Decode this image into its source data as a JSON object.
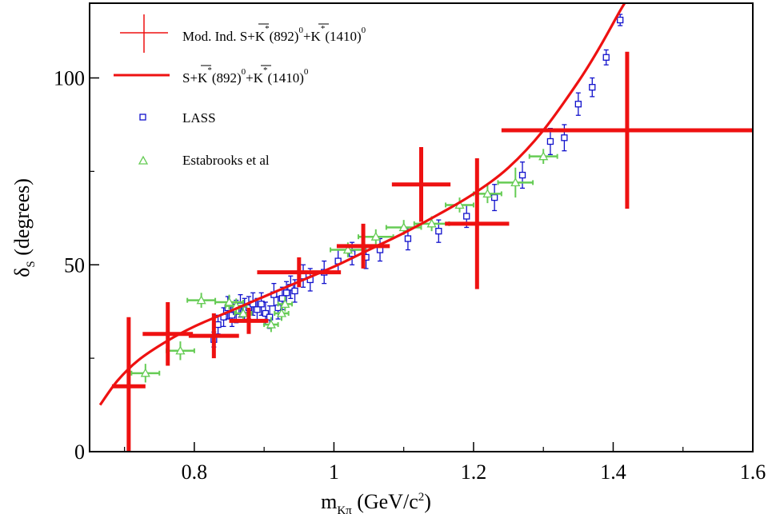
{
  "chart_data": {
    "type": "scatter",
    "x_axis": {
      "min": 0.65,
      "max": 1.6,
      "ticks": [
        0.8,
        1,
        1.2,
        1.4,
        1.6
      ],
      "tick_labels": [
        "0.8",
        "1",
        "1.2",
        "1.4",
        "1.6"
      ]
    },
    "y_axis": {
      "min": 0,
      "max": 120,
      "ticks": [
        0,
        50,
        100
      ],
      "tick_labels": [
        "0",
        "50",
        "100"
      ]
    },
    "xlabel": {
      "main": "m",
      "sub": "Kπ",
      "unit_pre": " (GeV/c",
      "unit_sup": "2",
      "unit_post": ")"
    },
    "ylabel": {
      "main": "δ",
      "sub": "S",
      "unit": " (degrees)"
    },
    "legend_position": "top-left",
    "series": [
      {
        "name": "Mod. Ind. S+K̄*(892)⁰+K̄*(1410)⁰",
        "legend": {
          "prefix": "Mod. Ind. S+",
          "k": "K",
          "star1": "*",
          "mass1": "(892)",
          "zero1": "0",
          "plus": "+",
          "star2": "*",
          "mass2": "(1410)",
          "zero2": "0"
        },
        "style": "crosses",
        "color": "#ee1111",
        "points": [
          {
            "x": 0.706,
            "y": 17.5,
            "xerr": 0.024,
            "yerr_lo": 18.5,
            "yerr_hi": 18.5
          },
          {
            "x": 0.762,
            "y": 31.5,
            "xerr": 0.036,
            "yerr_lo": 8.5,
            "yerr_hi": 8.5
          },
          {
            "x": 0.828,
            "y": 31.0,
            "xerr": 0.036,
            "yerr_lo": 6.0,
            "yerr_hi": 6.0
          },
          {
            "x": 0.878,
            "y": 35.0,
            "xerr": 0.028,
            "yerr_lo": 3.5,
            "yerr_hi": 3.5
          },
          {
            "x": 0.95,
            "y": 48.0,
            "xerr": 0.06,
            "yerr_lo": 4.0,
            "yerr_hi": 4.0
          },
          {
            "x": 1.042,
            "y": 55.0,
            "xerr": 0.038,
            "yerr_lo": 6.0,
            "yerr_hi": 6.0
          },
          {
            "x": 1.125,
            "y": 71.5,
            "xerr": 0.042,
            "yerr_lo": 10.0,
            "yerr_hi": 10.0
          },
          {
            "x": 1.205,
            "y": 61.0,
            "xerr": 0.046,
            "yerr_lo": 17.5,
            "yerr_hi": 17.5
          },
          {
            "x": 1.42,
            "y": 86.0,
            "xerr": 0.18,
            "yerr_lo": 21.0,
            "yerr_hi": 21.0
          }
        ]
      },
      {
        "name": "S+K̄*(892)⁰+K̄*(1410)⁰",
        "legend": {
          "prefix": "S+",
          "k": "K",
          "star1": "*",
          "mass1": "(892)",
          "zero1": "0",
          "plus": "+",
          "star2": "*",
          "mass2": "(1410)",
          "zero2": "0"
        },
        "style": "line",
        "color": "#ee1111",
        "points": [
          {
            "x": 0.665,
            "y": 12.5
          },
          {
            "x": 0.69,
            "y": 19.0
          },
          {
            "x": 0.72,
            "y": 24.5
          },
          {
            "x": 0.76,
            "y": 29.5
          },
          {
            "x": 0.8,
            "y": 33.5
          },
          {
            "x": 0.85,
            "y": 37.5
          },
          {
            "x": 0.9,
            "y": 41.5
          },
          {
            "x": 0.95,
            "y": 45.5
          },
          {
            "x": 1.0,
            "y": 49.5
          },
          {
            "x": 1.05,
            "y": 54.0
          },
          {
            "x": 1.1,
            "y": 58.5
          },
          {
            "x": 1.15,
            "y": 63.5
          },
          {
            "x": 1.2,
            "y": 69.0
          },
          {
            "x": 1.25,
            "y": 76.0
          },
          {
            "x": 1.3,
            "y": 86.0
          },
          {
            "x": 1.35,
            "y": 99.0
          },
          {
            "x": 1.38,
            "y": 108.0
          },
          {
            "x": 1.41,
            "y": 118.0
          },
          {
            "x": 1.42,
            "y": 121.0
          }
        ]
      },
      {
        "name": "LASS",
        "style": "square",
        "color": "#1111cc",
        "points": [
          {
            "x": 0.828,
            "y": 30.0,
            "yerr": 2.0
          },
          {
            "x": 0.834,
            "y": 34.0,
            "yerr": 2.5
          },
          {
            "x": 0.842,
            "y": 36.0,
            "yerr": 2.5
          },
          {
            "x": 0.848,
            "y": 38.5,
            "yerr": 3.0
          },
          {
            "x": 0.854,
            "y": 36.5,
            "yerr": 3.0
          },
          {
            "x": 0.86,
            "y": 37.5,
            "yerr": 3.0
          },
          {
            "x": 0.866,
            "y": 39.0,
            "yerr": 3.0
          },
          {
            "x": 0.872,
            "y": 38.0,
            "yerr": 3.0
          },
          {
            "x": 0.878,
            "y": 38.5,
            "yerr": 3.0
          },
          {
            "x": 0.884,
            "y": 39.5,
            "yerr": 3.0
          },
          {
            "x": 0.89,
            "y": 38.0,
            "yerr": 3.0
          },
          {
            "x": 0.896,
            "y": 39.5,
            "yerr": 3.0
          },
          {
            "x": 0.902,
            "y": 37.0,
            "yerr": 3.0
          },
          {
            "x": 0.908,
            "y": 36.0,
            "yerr": 3.0
          },
          {
            "x": 0.914,
            "y": 42.0,
            "yerr": 3.0
          },
          {
            "x": 0.92,
            "y": 38.5,
            "yerr": 3.0
          },
          {
            "x": 0.926,
            "y": 41.0,
            "yerr": 3.0
          },
          {
            "x": 0.932,
            "y": 42.5,
            "yerr": 3.0
          },
          {
            "x": 0.938,
            "y": 44.0,
            "yerr": 3.0
          },
          {
            "x": 0.944,
            "y": 43.0,
            "yerr": 3.0
          },
          {
            "x": 0.956,
            "y": 47.0,
            "yerr": 3.0
          },
          {
            "x": 0.966,
            "y": 46.0,
            "yerr": 3.0
          },
          {
            "x": 0.986,
            "y": 48.0,
            "yerr": 3.0
          },
          {
            "x": 1.006,
            "y": 51.0,
            "yerr": 3.0
          },
          {
            "x": 1.026,
            "y": 53.0,
            "yerr": 3.0
          },
          {
            "x": 1.046,
            "y": 52.0,
            "yerr": 3.0
          },
          {
            "x": 1.066,
            "y": 54.0,
            "yerr": 3.0
          },
          {
            "x": 1.106,
            "y": 57.0,
            "yerr": 3.0
          },
          {
            "x": 1.15,
            "y": 59.0,
            "yerr": 3.0
          },
          {
            "x": 1.19,
            "y": 63.0,
            "yerr": 3.0
          },
          {
            "x": 1.23,
            "y": 68.0,
            "yerr": 3.5
          },
          {
            "x": 1.27,
            "y": 74.0,
            "yerr": 3.5
          },
          {
            "x": 1.31,
            "y": 83.0,
            "yerr": 3.5
          },
          {
            "x": 1.33,
            "y": 84.0,
            "yerr": 3.5
          },
          {
            "x": 1.35,
            "y": 93.0,
            "yerr": 3.0
          },
          {
            "x": 1.37,
            "y": 97.5,
            "yerr": 2.5
          },
          {
            "x": 1.39,
            "y": 105.5,
            "yerr": 2.0
          },
          {
            "x": 1.41,
            "y": 115.5,
            "yerr": 1.5
          }
        ]
      },
      {
        "name": "Estabrooks et al",
        "style": "triangle",
        "color": "#66cc55",
        "points": [
          {
            "x": 0.73,
            "y": 21.0,
            "xerr": 0.02,
            "yerr": 2.5
          },
          {
            "x": 0.78,
            "y": 27.0,
            "xerr": 0.02,
            "yerr": 2.5
          },
          {
            "x": 0.81,
            "y": 40.5,
            "xerr": 0.02,
            "yerr": 2.0
          },
          {
            "x": 0.85,
            "y": 40.0,
            "xerr": 0.02,
            "yerr": 2.0
          },
          {
            "x": 0.86,
            "y": 39.0,
            "xerr": 0.015,
            "yerr": 2.0
          },
          {
            "x": 0.87,
            "y": 37.0,
            "xerr": 0.012,
            "yerr": 2.0
          },
          {
            "x": 0.91,
            "y": 34.0,
            "xerr": 0.01,
            "yerr": 2.0
          },
          {
            "x": 0.925,
            "y": 37.0,
            "xerr": 0.01,
            "yerr": 2.0
          },
          {
            "x": 0.93,
            "y": 39.5,
            "xerr": 0.01,
            "yerr": 2.0
          },
          {
            "x": 1.02,
            "y": 54.0,
            "xerr": 0.025,
            "yerr": 2.0
          },
          {
            "x": 1.06,
            "y": 57.5,
            "xerr": 0.025,
            "yerr": 2.0
          },
          {
            "x": 1.1,
            "y": 60.0,
            "xerr": 0.025,
            "yerr": 2.0
          },
          {
            "x": 1.14,
            "y": 61.0,
            "xerr": 0.025,
            "yerr": 2.0
          },
          {
            "x": 1.18,
            "y": 66.0,
            "xerr": 0.02,
            "yerr": 2.0
          },
          {
            "x": 1.22,
            "y": 69.0,
            "xerr": 0.02,
            "yerr": 2.5
          },
          {
            "x": 1.26,
            "y": 72.0,
            "xerr": 0.025,
            "yerr": 4.0
          },
          {
            "x": 1.3,
            "y": 79.0,
            "xerr": 0.02,
            "yerr": 2.0
          }
        ]
      }
    ]
  }
}
